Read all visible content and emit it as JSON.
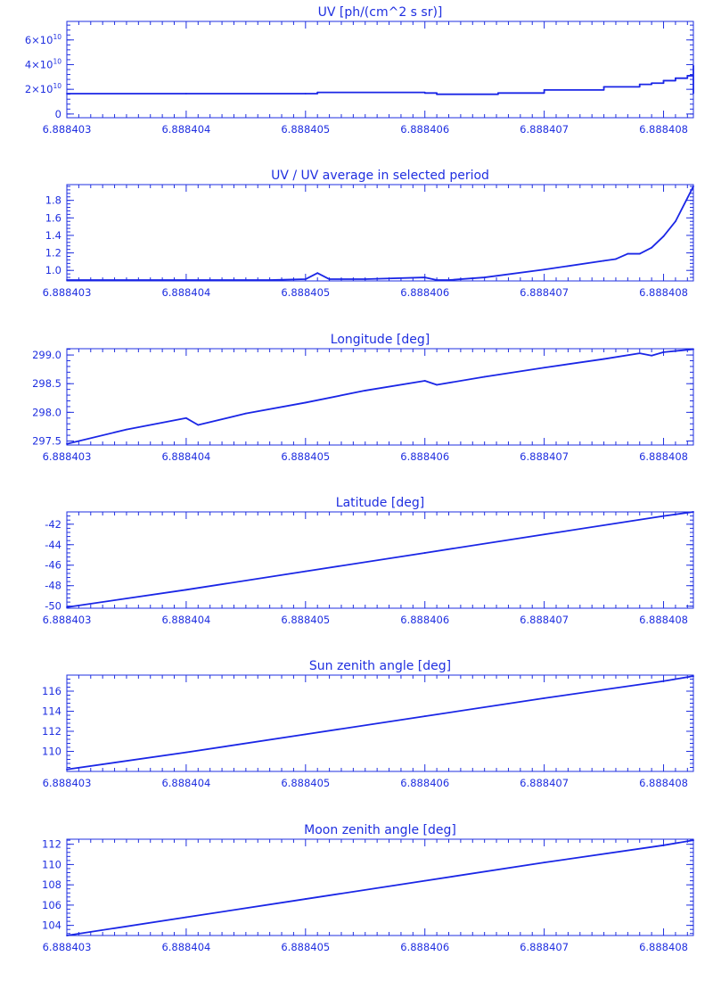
{
  "colors": {
    "axis": "#1f2fe0",
    "series": "#1a26e6",
    "background": "#ffffff"
  },
  "x_tick_labels": [
    "6.888403",
    "6.888404",
    "6.888405",
    "6.888406",
    "6.888407",
    "6.888408"
  ],
  "chart_data": [
    {
      "type": "line",
      "title": "UV [ph/(cm^2 s sr)]",
      "x": [
        6.888403,
        6.888404,
        6.888405,
        6.8884051,
        6.888406,
        6.8884061,
        6.888406614,
        6.888407,
        6.8884075,
        6.8884078,
        6.8884079,
        6.888408,
        6.8884081,
        6.8884082,
        6.88840825
      ],
      "y": [
        16500000000.0,
        16500000000.0,
        16500000000.0,
        17500000000.0,
        17000000000.0,
        16000000000.0,
        17000000000.0,
        19500000000.0,
        22000000000.0,
        24000000000.0,
        25000000000.0,
        27000000000.0,
        29000000000.0,
        31000000000.0,
        39000000000.0
      ],
      "step": true,
      "xlim": [
        6.888403,
        6.88840825
      ],
      "ylim": [
        -3000000000.0,
        75000000000.0
      ],
      "yticks": [
        0,
        20000000000.0,
        40000000000.0,
        60000000000.0
      ],
      "ytick_labels": [
        {
          "base": "0",
          "exp": ""
        },
        {
          "base": "2×10",
          "exp": "10"
        },
        {
          "base": "4×10",
          "exp": "10"
        },
        {
          "base": "6×10",
          "exp": "10"
        }
      ]
    },
    {
      "type": "line",
      "title": "UV / UV average in selected period",
      "x": [
        6.888403,
        6.8884035,
        6.888404,
        6.8884047,
        6.888405,
        6.8884051,
        6.8884052,
        6.8884055,
        6.888406,
        6.8884061,
        6.8884062,
        6.8884065,
        6.888407,
        6.8884075,
        6.8884076,
        6.8884077,
        6.8884078,
        6.8884079,
        6.888408,
        6.8884081,
        6.88840825
      ],
      "y": [
        0.89,
        0.89,
        0.89,
        0.89,
        0.9,
        0.97,
        0.9,
        0.9,
        0.92,
        0.89,
        0.89,
        0.92,
        1.01,
        1.11,
        1.13,
        1.19,
        1.19,
        1.26,
        1.39,
        1.56,
        1.96
      ],
      "xlim": [
        6.888403,
        6.88840825
      ],
      "ylim": [
        0.88,
        1.98
      ],
      "yticks": [
        1.0,
        1.2,
        1.4,
        1.6,
        1.8
      ],
      "ytick_labels": [
        {
          "base": "1.0",
          "exp": ""
        },
        {
          "base": "1.2",
          "exp": ""
        },
        {
          "base": "1.4",
          "exp": ""
        },
        {
          "base": "1.6",
          "exp": ""
        },
        {
          "base": "1.8",
          "exp": ""
        }
      ]
    },
    {
      "type": "line",
      "title": "Longitude [deg]",
      "x": [
        6.888403,
        6.8884035,
        6.888404,
        6.8884041,
        6.8884045,
        6.888405,
        6.8884055,
        6.888406,
        6.8884061,
        6.8884065,
        6.888407,
        6.8884075,
        6.8884078,
        6.8884079,
        6.888408,
        6.88840825
      ],
      "y": [
        297.45,
        297.7,
        297.9,
        297.78,
        297.98,
        298.17,
        298.38,
        298.55,
        298.48,
        298.62,
        298.78,
        298.93,
        299.03,
        298.99,
        299.05,
        299.1
      ],
      "xlim": [
        6.888403,
        6.88840825
      ],
      "ylim": [
        297.43,
        299.11
      ],
      "yticks": [
        297.5,
        298.0,
        298.5,
        299.0
      ],
      "ytick_labels": [
        {
          "base": "297.5",
          "exp": ""
        },
        {
          "base": "298.0",
          "exp": ""
        },
        {
          "base": "298.5",
          "exp": ""
        },
        {
          "base": "299.0",
          "exp": ""
        }
      ]
    },
    {
      "type": "line",
      "title": "Latitude [deg]",
      "x": [
        6.888403,
        6.888404,
        6.888405,
        6.888406,
        6.888407,
        6.888408,
        6.88840825
      ],
      "y": [
        -50.1,
        -48.4,
        -46.6,
        -44.8,
        -43.0,
        -41.2,
        -40.8
      ],
      "xlim": [
        6.888403,
        6.88840825
      ],
      "ylim": [
        -50.2,
        -40.8
      ],
      "yticks": [
        -50,
        -48,
        -46,
        -44,
        -42
      ],
      "ytick_labels": [
        {
          "base": "-50",
          "exp": ""
        },
        {
          "base": "-48",
          "exp": ""
        },
        {
          "base": "-46",
          "exp": ""
        },
        {
          "base": "-44",
          "exp": ""
        },
        {
          "base": "-42",
          "exp": ""
        }
      ]
    },
    {
      "type": "line",
      "title": "Sun zenith angle [deg]",
      "x": [
        6.888403,
        6.888404,
        6.888405,
        6.888406,
        6.888407,
        6.888408,
        6.88840825
      ],
      "y": [
        108.2,
        109.9,
        111.7,
        113.5,
        115.3,
        117.0,
        117.5
      ],
      "xlim": [
        6.888403,
        6.88840825
      ],
      "ylim": [
        108.0,
        117.6
      ],
      "yticks": [
        110,
        112,
        114,
        116
      ],
      "ytick_labels": [
        {
          "base": "110",
          "exp": ""
        },
        {
          "base": "112",
          "exp": ""
        },
        {
          "base": "114",
          "exp": ""
        },
        {
          "base": "116",
          "exp": ""
        }
      ]
    },
    {
      "type": "line",
      "title": "Moon zenith angle [deg]",
      "x": [
        6.888403,
        6.888404,
        6.888405,
        6.888406,
        6.888407,
        6.888408,
        6.88840825
      ],
      "y": [
        103.0,
        104.8,
        106.6,
        108.4,
        110.2,
        111.9,
        112.4
      ],
      "xlim": [
        6.888403,
        6.88840825
      ],
      "ylim": [
        103.0,
        112.5
      ],
      "yticks": [
        104,
        106,
        108,
        110,
        112
      ],
      "ytick_labels": [
        {
          "base": "104",
          "exp": ""
        },
        {
          "base": "106",
          "exp": ""
        },
        {
          "base": "108",
          "exp": ""
        },
        {
          "base": "110",
          "exp": ""
        },
        {
          "base": "112",
          "exp": ""
        }
      ]
    }
  ]
}
